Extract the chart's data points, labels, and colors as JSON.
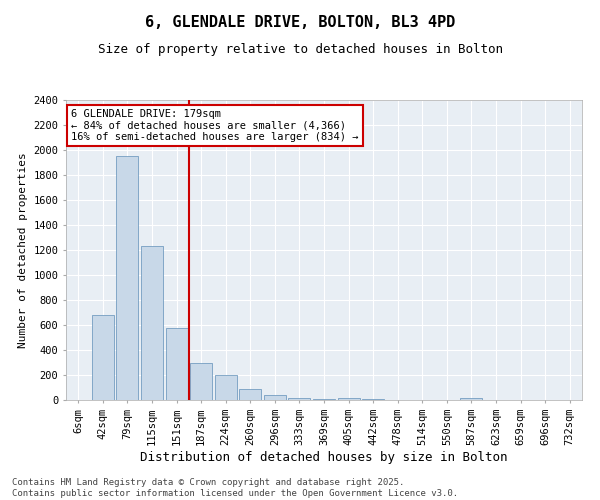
{
  "title1": "6, GLENDALE DRIVE, BOLTON, BL3 4PD",
  "title2": "Size of property relative to detached houses in Bolton",
  "xlabel": "Distribution of detached houses by size in Bolton",
  "ylabel": "Number of detached properties",
  "bar_labels": [
    "6sqm",
    "42sqm",
    "79sqm",
    "115sqm",
    "151sqm",
    "187sqm",
    "224sqm",
    "260sqm",
    "296sqm",
    "333sqm",
    "369sqm",
    "405sqm",
    "442sqm",
    "478sqm",
    "514sqm",
    "550sqm",
    "587sqm",
    "623sqm",
    "659sqm",
    "696sqm",
    "732sqm"
  ],
  "bar_values": [
    0,
    680,
    1950,
    1230,
    580,
    300,
    200,
    85,
    40,
    15,
    5,
    15,
    5,
    2,
    0,
    0,
    15,
    0,
    0,
    0,
    0
  ],
  "bar_color": "#c8d8e8",
  "bar_edge_color": "#6090b8",
  "vline_x_index": 5,
  "vline_color": "#cc0000",
  "annotation_text": "6 GLENDALE DRIVE: 179sqm\n← 84% of detached houses are smaller (4,366)\n16% of semi-detached houses are larger (834) →",
  "annotation_box_color": "#cc0000",
  "ylim": [
    0,
    2400
  ],
  "yticks": [
    0,
    200,
    400,
    600,
    800,
    1000,
    1200,
    1400,
    1600,
    1800,
    2000,
    2200,
    2400
  ],
  "background_color": "#e8eef4",
  "footer_text": "Contains HM Land Registry data © Crown copyright and database right 2025.\nContains public sector information licensed under the Open Government Licence v3.0.",
  "title1_fontsize": 11,
  "title2_fontsize": 9,
  "xlabel_fontsize": 9,
  "ylabel_fontsize": 8,
  "tick_fontsize": 7.5,
  "footer_fontsize": 6.5
}
